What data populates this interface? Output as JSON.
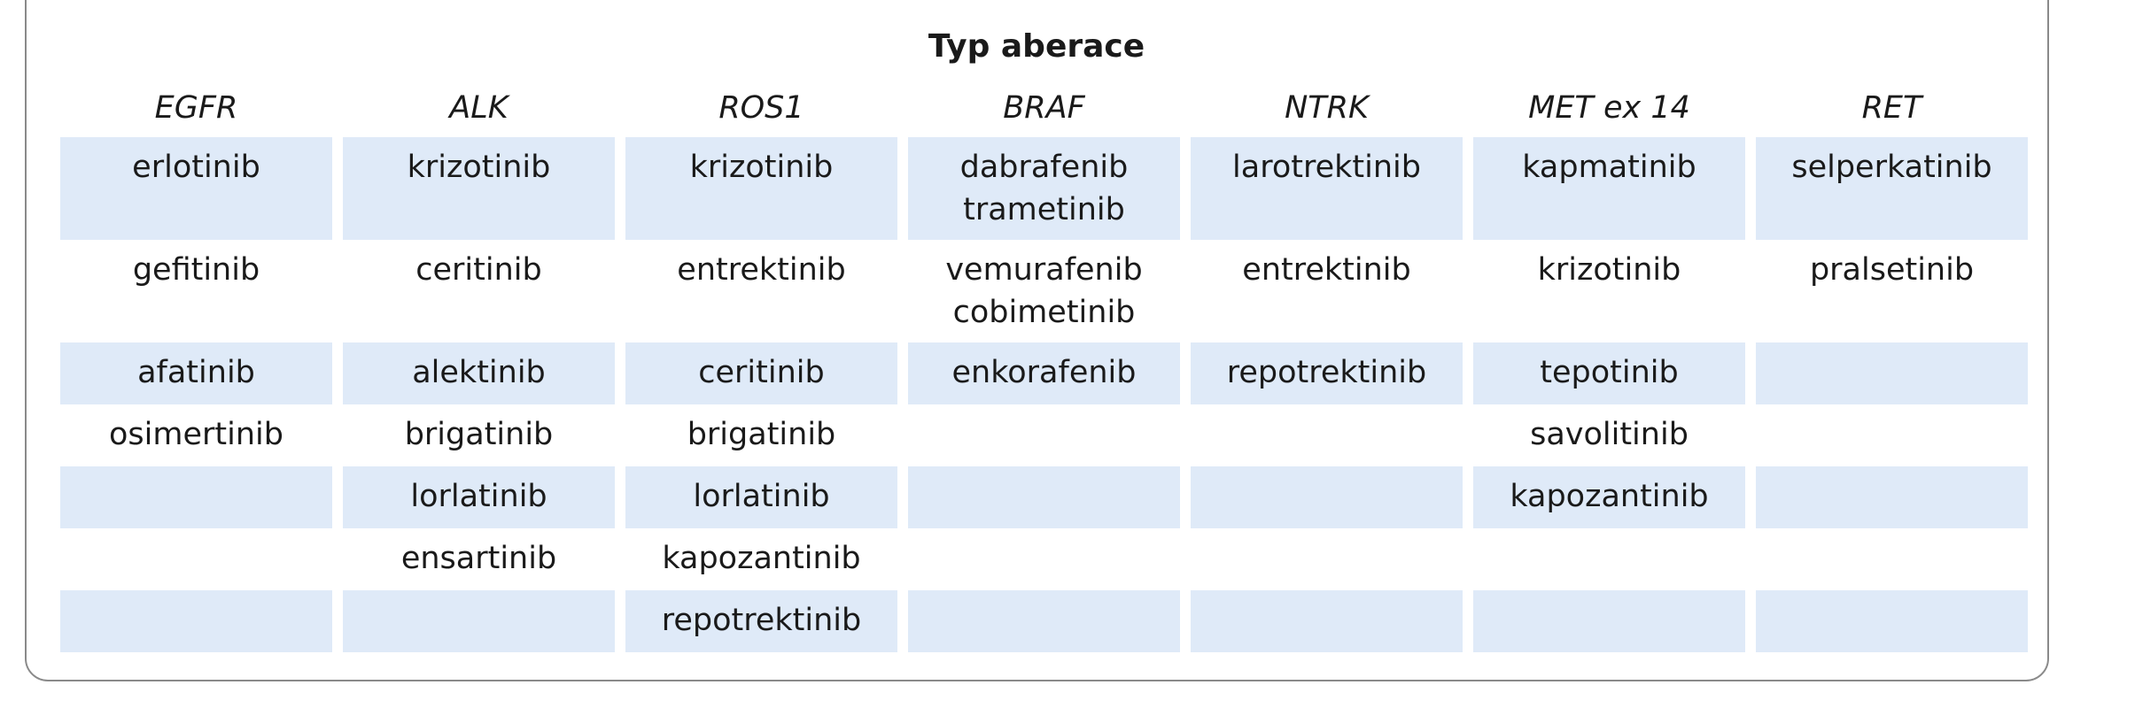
{
  "table": {
    "title": "Typ aberace",
    "columns": [
      "EGFR",
      "ALK",
      "ROS1",
      "BRAF",
      "NTRK",
      "MET ex 14",
      "RET"
    ],
    "rows": [
      [
        [
          "erlotinib"
        ],
        [
          "krizotinib"
        ],
        [
          "krizotinib"
        ],
        [
          "dabrafenib",
          "trametinib"
        ],
        [
          "larotrektinib"
        ],
        [
          "kapmatinib"
        ],
        [
          "selperkatinib"
        ]
      ],
      [
        [
          "gefitinib"
        ],
        [
          "ceritinib"
        ],
        [
          "entrektinib"
        ],
        [
          "vemurafenib",
          "cobimetinib"
        ],
        [
          "entrektinib"
        ],
        [
          "krizotinib"
        ],
        [
          "pralsetinib"
        ]
      ],
      [
        [
          "afatinib"
        ],
        [
          "alektinib"
        ],
        [
          "ceritinib"
        ],
        [
          "enkorafenib"
        ],
        [
          "repotrektinib"
        ],
        [
          "tepotinib"
        ],
        []
      ],
      [
        [
          "osimertinib"
        ],
        [
          "brigatinib"
        ],
        [
          "brigatinib"
        ],
        [],
        [],
        [
          "savolitinib"
        ],
        []
      ],
      [
        [],
        [
          "lorlatinib"
        ],
        [
          "lorlatinib"
        ],
        [],
        [],
        [
          "kapozantinib"
        ],
        []
      ],
      [
        [],
        [
          "ensartinib"
        ],
        [
          "kapozantinib"
        ],
        [],
        [],
        [],
        []
      ],
      [
        [],
        [],
        [
          "repotrektinib"
        ],
        [],
        [],
        [],
        []
      ]
    ]
  }
}
